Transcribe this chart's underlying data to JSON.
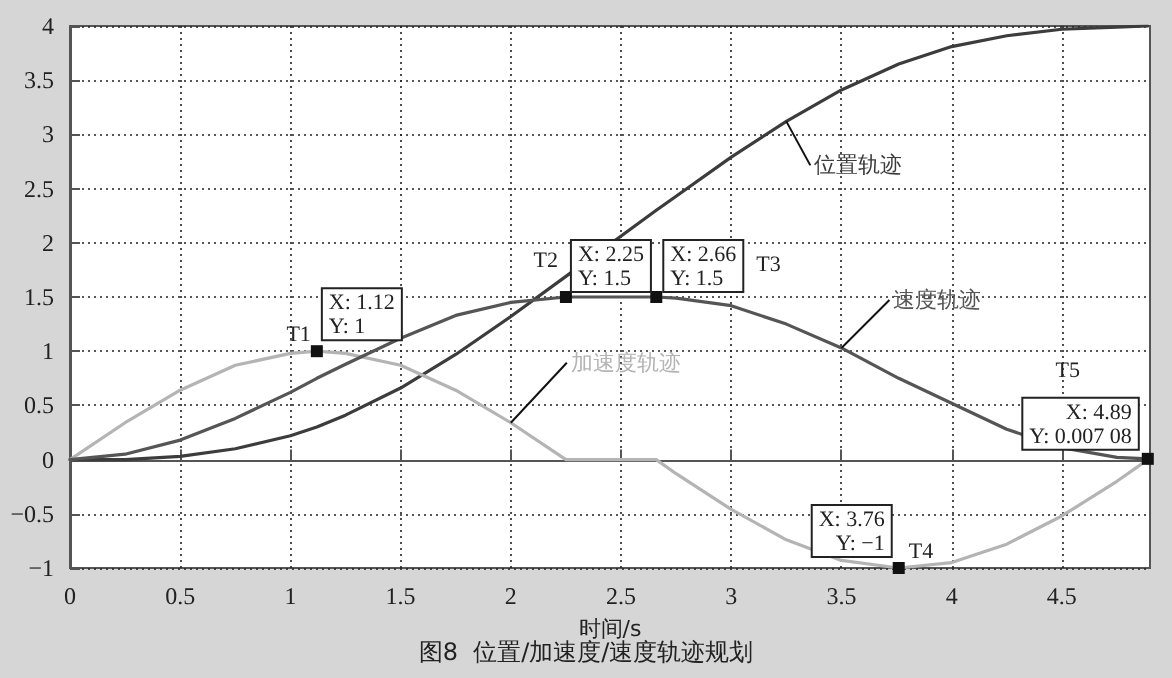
{
  "chart_data": {
    "type": "line",
    "title": "图8  位置/加速度/速度轨迹规划",
    "xlabel": "时间/s",
    "x": [
      0,
      0.25,
      0.5,
      0.75,
      1,
      1.12,
      1.25,
      1.5,
      1.75,
      2,
      2.25,
      2.66,
      2.75,
      3,
      3.25,
      3.5,
      3.76,
      4,
      4.25,
      4.5,
      4.75,
      4.89
    ],
    "series": [
      {
        "name": "位置轨迹",
        "color": "#3c3c3c",
        "values": [
          0,
          0,
          0.03,
          0.1,
          0.22,
          0.3,
          0.41,
          0.66,
          0.97,
          1.32,
          1.69,
          2.3,
          2.43,
          2.79,
          3.12,
          3.41,
          3.65,
          3.81,
          3.91,
          3.97,
          3.99,
          4
        ]
      },
      {
        "name": "加速度轨迹",
        "color": "#b4b4b4",
        "values": [
          0,
          0.34,
          0.64,
          0.87,
          0.98,
          1,
          0.98,
          0.87,
          0.64,
          0.34,
          0,
          0,
          -0.13,
          -0.46,
          -0.74,
          -0.93,
          -1,
          -0.95,
          -0.78,
          -0.52,
          -0.2,
          0
        ]
      },
      {
        "name": "速度轨迹",
        "color": "#555555",
        "values": [
          0,
          0.05,
          0.18,
          0.38,
          0.62,
          0.75,
          0.88,
          1.12,
          1.33,
          1.45,
          1.5,
          1.5,
          1.49,
          1.42,
          1.25,
          1.03,
          0.75,
          0.52,
          0.28,
          0.11,
          0.02,
          0.00708
        ]
      }
    ],
    "xlim": [
      0,
      4.9
    ],
    "xticks": [
      0,
      0.5,
      1,
      1.5,
      2,
      2.5,
      3,
      3.5,
      4,
      4.5
    ],
    "ylim": [
      -1,
      4
    ],
    "yticks": [
      -1,
      -0.5,
      0,
      0.5,
      1,
      1.5,
      2,
      2.5,
      3,
      3.5,
      4
    ],
    "grid": true,
    "marker": "none",
    "line_style": "solid",
    "annotations": [
      {
        "text": "X: 1.12\nY: 1",
        "x": 1.12,
        "y": 1
      },
      "T1",
      {
        "text": "X: 2.25\nY: 1.5",
        "x": 2.25,
        "y": 1.5
      },
      "T2",
      {
        "text": "X: 2.66\nY: 1.5",
        "x": 2.66,
        "y": 1.5
      },
      "T3",
      {
        "text": "X: 3.76\nY: −1",
        "x": 3.76,
        "y": -1
      },
      "T4",
      {
        "text": "X: 4.89\nY: 0.007 08",
        "x": 4.89,
        "y": 0.00708
      },
      "T5"
    ]
  }
}
